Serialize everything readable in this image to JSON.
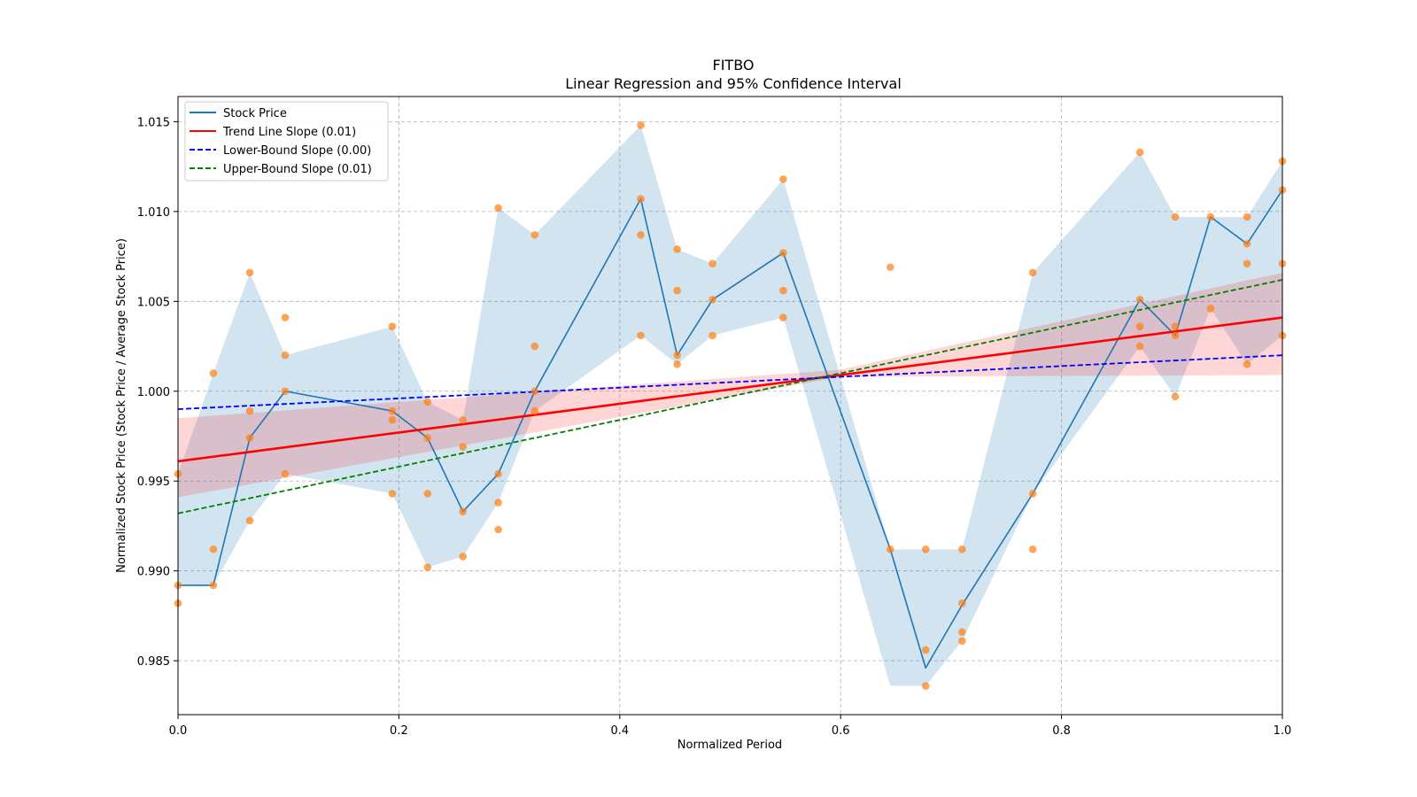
{
  "colors": {
    "stock": "#1f77b4",
    "band": "#1f77b4",
    "points": "#ff7f0e",
    "trend": "#ff0000",
    "ci": "#ff0000",
    "lower": "#0000ff",
    "upper": "#008000",
    "grid": "#b0b0b0"
  },
  "chart_data": {
    "type": "line",
    "title": "FITBO",
    "subtitle": "Linear Regression and 95% Confidence Interval",
    "xlabel": "Normalized Period",
    "ylabel": "Normalized Stock Price (Stock Price / Average Stock Price)",
    "xlim": [
      0.0,
      1.0
    ],
    "ylim": [
      0.982,
      1.0164
    ],
    "x_ticks": [
      0.0,
      0.2,
      0.4,
      0.6,
      0.8,
      1.0
    ],
    "x_tick_labels": [
      "0.0",
      "0.2",
      "0.4",
      "0.6",
      "0.8",
      "1.0"
    ],
    "y_ticks": [
      0.985,
      0.99,
      0.995,
      1.0,
      1.005,
      1.01,
      1.015
    ],
    "y_tick_labels": [
      "0.985",
      "0.990",
      "0.995",
      "1.000",
      "1.005",
      "1.010",
      "1.015"
    ],
    "grid": true,
    "legend": {
      "position": "top-left",
      "entries": [
        {
          "label": "Stock Price",
          "style": "solid",
          "color": "#1f77b4"
        },
        {
          "label": "Trend Line Slope (0.01)",
          "style": "solid",
          "color": "#ff0000"
        },
        {
          "label": "Lower-Bound Slope (0.00)",
          "style": "dashed",
          "color": "#0000ff"
        },
        {
          "label": "Upper-Bound Slope (0.01)",
          "style": "dashed",
          "color": "#008000"
        }
      ]
    },
    "stock_price": {
      "x": [
        0.0,
        0.032,
        0.065,
        0.097,
        0.194,
        0.226,
        0.258,
        0.29,
        0.323,
        0.419,
        0.452,
        0.484,
        0.548,
        0.645,
        0.677,
        0.71,
        0.774,
        0.871,
        0.903,
        0.935,
        0.968,
        1.0
      ],
      "y": [
        0.9892,
        0.9892,
        0.9974,
        1.0,
        0.9989,
        0.9974,
        0.9933,
        0.9954,
        1.0,
        1.0107,
        1.002,
        1.0051,
        1.0077,
        0.9912,
        0.9846,
        0.9881,
        0.9943,
        1.0051,
        1.0031,
        1.0097,
        1.0082,
        1.0112
      ]
    },
    "stock_band": {
      "x": [
        0.0,
        0.032,
        0.065,
        0.097,
        0.194,
        0.226,
        0.258,
        0.29,
        0.323,
        0.419,
        0.452,
        0.484,
        0.548,
        0.645,
        0.677,
        0.71,
        0.774,
        0.871,
        0.903,
        0.935,
        0.968,
        1.0
      ],
      "upper": [
        0.9954,
        1.001,
        1.0066,
        1.002,
        1.0036,
        0.9994,
        0.9984,
        1.0102,
        1.0087,
        1.0148,
        1.0079,
        1.0071,
        1.0118,
        0.9912,
        0.9912,
        0.9912,
        1.0066,
        1.0133,
        1.0097,
        1.0097,
        1.0097,
        1.0128
      ],
      "lower": [
        0.9892,
        0.9892,
        0.9928,
        0.9954,
        0.9943,
        0.9902,
        0.9908,
        0.9938,
        0.9989,
        1.0031,
        1.0015,
        1.0031,
        1.0041,
        0.9836,
        0.9836,
        0.9861,
        0.9943,
        1.0025,
        0.9997,
        1.0046,
        1.0015,
        1.0031
      ]
    },
    "scatter_points": {
      "x": [
        0.0,
        0.0,
        0.0,
        0.032,
        0.032,
        0.032,
        0.065,
        0.065,
        0.065,
        0.065,
        0.097,
        0.097,
        0.097,
        0.097,
        0.194,
        0.194,
        0.194,
        0.194,
        0.226,
        0.226,
        0.226,
        0.226,
        0.258,
        0.258,
        0.258,
        0.258,
        0.29,
        0.29,
        0.29,
        0.29,
        0.323,
        0.323,
        0.323,
        0.323,
        0.419,
        0.419,
        0.419,
        0.419,
        0.452,
        0.452,
        0.452,
        0.452,
        0.484,
        0.484,
        0.484,
        0.548,
        0.548,
        0.548,
        0.548,
        0.645,
        0.645,
        0.677,
        0.677,
        0.677,
        0.71,
        0.71,
        0.71,
        0.71,
        0.774,
        0.774,
        0.774,
        0.871,
        0.871,
        0.871,
        0.871,
        0.903,
        0.903,
        0.903,
        0.903,
        0.935,
        0.935,
        0.968,
        0.968,
        0.968,
        0.968,
        1.0,
        1.0,
        1.0,
        1.0
      ],
      "y": [
        0.9954,
        0.9892,
        0.9882,
        1.001,
        0.9912,
        0.9892,
        1.0066,
        0.9989,
        0.9974,
        0.9928,
        1.0041,
        1.002,
        1.0,
        0.9954,
        1.0036,
        0.9989,
        0.9984,
        0.9943,
        0.9994,
        0.9974,
        0.9943,
        0.9902,
        0.9984,
        0.9969,
        0.9933,
        0.9908,
        1.0102,
        0.9954,
        0.9938,
        0.9923,
        1.0087,
        1.0025,
        1.0,
        0.9989,
        1.0148,
        1.0107,
        1.0087,
        1.0031,
        1.0079,
        1.0056,
        1.002,
        1.0015,
        1.0071,
        1.0051,
        1.0031,
        1.0118,
        1.0077,
        1.0056,
        1.0041,
        1.0069,
        0.9912,
        0.9912,
        0.9856,
        0.9836,
        0.9912,
        0.9882,
        0.9866,
        0.9861,
        1.0066,
        0.9943,
        0.9912,
        1.0133,
        1.0051,
        1.0036,
        1.0025,
        1.0097,
        1.0036,
        1.0031,
        0.9997,
        1.0097,
        1.0046,
        1.0097,
        1.0082,
        1.0071,
        1.0015,
        1.0128,
        1.0112,
        1.0071,
        1.0031
      ]
    },
    "trend_line": {
      "x": [
        0.0,
        1.0
      ],
      "y": [
        0.9961,
        1.0041
      ]
    },
    "trend_ci": {
      "x": [
        0.0,
        0.6,
        1.0
      ],
      "upper": [
        0.9985,
        1.0012,
        1.0066
      ],
      "lower": [
        0.9941,
        1.0008,
        1.0009
      ]
    },
    "lower_bound_line": {
      "x": [
        0.0,
        1.0
      ],
      "y": [
        0.999,
        1.002
      ]
    },
    "upper_bound_line": {
      "x": [
        0.0,
        1.0
      ],
      "y": [
        0.9932,
        1.0062
      ]
    }
  }
}
